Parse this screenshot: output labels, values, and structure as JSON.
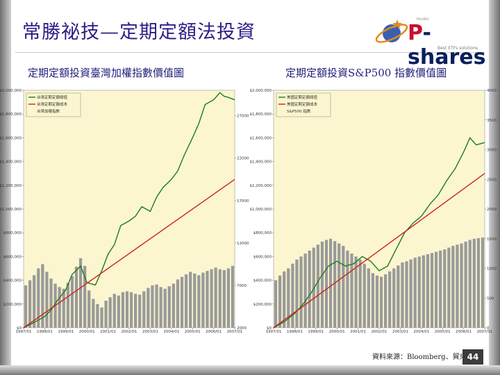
{
  "page": {
    "title": "常勝祕技—定期定額法投資",
    "source": "資料來源：Bloomberg、貿來投信",
    "page_number": "44",
    "logo": {
      "brand_prefix": "P",
      "brand_suffix": "-shares",
      "tagline": "Best ETFs solutions",
      "small": "POLARIS"
    }
  },
  "colors": {
    "cumulative": "#1f7a1f",
    "invested": "#cc2222",
    "index_bars": "#9a9a9a",
    "plot_bg": "#fbf6cf",
    "title": "#2b1d86"
  },
  "chart_data": [
    {
      "type": "line",
      "subtitle": "定期定額投資臺灣加權指數價值圖",
      "x_tick_labels": [
        "1997/01",
        "1998/01",
        "1999/01",
        "2000/01",
        "2001/01",
        "2002/01",
        "2003/01",
        "2004/01",
        "2005/01",
        "2006/01",
        "2007/01"
      ],
      "y_left_ticks": [
        0,
        200000,
        400000,
        600000,
        800000,
        1000000,
        1200000,
        1400000,
        1600000,
        1800000,
        2000000
      ],
      "y_left_tick_labels": [
        "$0",
        "$200,000",
        "$400,000",
        "$600,000",
        "$800,000",
        "$1,000,000",
        "$1,200,000",
        "$1,400,000",
        "$1,600,000",
        "$1,800,000",
        "$2,000,000"
      ],
      "y_right_ticks": [
        2000,
        7000,
        12000,
        17000,
        22000,
        27000
      ],
      "y_right_tick_labels": [
        "2000",
        "7000",
        "12000",
        "17000",
        "22000",
        "27000"
      ],
      "ylim_left": [
        0,
        2000000
      ],
      "ylim_right": [
        2000,
        30000
      ],
      "legend": [
        "台灣定期定額總值",
        "台灣定期定額成本",
        "台灣加權指數"
      ],
      "series": [
        {
          "name": "台灣定期定額總值",
          "axis": "left",
          "style": "line",
          "x": [
            0,
            0.05,
            0.1,
            0.13,
            0.16,
            0.2,
            0.23,
            0.27,
            0.3,
            0.34,
            0.37,
            0.4,
            0.43,
            0.46,
            0.5,
            0.53,
            0.56,
            0.6,
            0.63,
            0.66,
            0.7,
            0.73,
            0.76,
            0.8,
            0.83,
            0.86,
            0.9,
            0.93,
            0.95,
            0.97,
            1.0
          ],
          "y": [
            0,
            45000,
            95000,
            150000,
            230000,
            320000,
            450000,
            520000,
            380000,
            360000,
            480000,
            620000,
            700000,
            860000,
            900000,
            940000,
            1020000,
            980000,
            1100000,
            1180000,
            1250000,
            1320000,
            1450000,
            1600000,
            1720000,
            1880000,
            1920000,
            1980000,
            1950000,
            1940000,
            1920000
          ]
        },
        {
          "name": "台灣定期定額成本",
          "axis": "left",
          "style": "line",
          "x": [
            0,
            1.0
          ],
          "y": [
            0,
            1250000
          ]
        },
        {
          "name": "台灣加權指數",
          "axis": "right",
          "style": "bars",
          "values": [
            7000,
            7600,
            8200,
            9000,
            9500,
            8600,
            7800,
            7200,
            6800,
            6600,
            7300,
            8100,
            9200,
            10200,
            9300,
            6400,
            5400,
            4800,
            4400,
            5200,
            5600,
            6000,
            5800,
            6200,
            6300,
            6200,
            6000,
            5900,
            6300,
            6700,
            7000,
            7100,
            6800,
            6600,
            6900,
            7200,
            7700,
            8000,
            8300,
            8600,
            8400,
            8200,
            8500,
            8700,
            8900,
            9100,
            8900,
            8800,
            9000,
            9300
          ]
        }
      ]
    },
    {
      "type": "line",
      "subtitle": "定期定額投資S&P500 指數價值圖",
      "x_tick_labels": [
        "1997/01",
        "1998/01",
        "1999/01",
        "2000/01",
        "2001/01",
        "2002/01",
        "2003/01",
        "2004/01",
        "2005/01",
        "2006/01",
        "2007/01"
      ],
      "y_left_ticks": [
        0,
        200000,
        400000,
        600000,
        800000,
        1000000,
        1200000,
        1400000,
        1600000,
        1800000,
        2000000
      ],
      "y_left_tick_labels": [
        "$0",
        "$200,000",
        "$400,000",
        "$600,000",
        "$800,000",
        "$1,000,000",
        "$1,200,000",
        "$1,400,000",
        "$1,600,000",
        "$1,800,000",
        "$2,000,000"
      ],
      "y_right_ticks": [
        0,
        500,
        1000,
        1500,
        2000,
        2500,
        3000,
        3500,
        4000
      ],
      "y_right_tick_labels": [
        "0",
        "500",
        "1000",
        "1500",
        "2000",
        "2500",
        "3000",
        "3500",
        "4000"
      ],
      "ylim_left": [
        0,
        2000000
      ],
      "ylim_right": [
        0,
        4000
      ],
      "legend": [
        "美國定期定額總值",
        "美國定期定額成本",
        "S&P500 指數"
      ],
      "series": [
        {
          "name": "美國定期定額總值",
          "axis": "left",
          "style": "line",
          "x": [
            0,
            0.05,
            0.1,
            0.14,
            0.18,
            0.22,
            0.26,
            0.3,
            0.34,
            0.38,
            0.42,
            0.46,
            0.5,
            0.54,
            0.58,
            0.62,
            0.66,
            0.7,
            0.74,
            0.78,
            0.82,
            0.86,
            0.9,
            0.93,
            0.96,
            1.0
          ],
          "y": [
            0,
            50000,
            120000,
            200000,
            300000,
            420000,
            520000,
            560000,
            520000,
            540000,
            600000,
            560000,
            480000,
            520000,
            660000,
            800000,
            880000,
            940000,
            1040000,
            1120000,
            1240000,
            1340000,
            1480000,
            1600000,
            1540000,
            1560000
          ]
        },
        {
          "name": "美國定期定額成本",
          "axis": "left",
          "style": "line",
          "x": [
            0,
            1.0
          ],
          "y": [
            0,
            1300000
          ]
        },
        {
          "name": "S&P500 指數",
          "axis": "right",
          "style": "bars",
          "values": [
            800,
            880,
            950,
            1000,
            1080,
            1150,
            1200,
            1250,
            1300,
            1350,
            1400,
            1450,
            1480,
            1500,
            1460,
            1420,
            1380,
            1300,
            1250,
            1200,
            1150,
            1080,
            1000,
            920,
            880,
            860,
            900,
            950,
            1000,
            1050,
            1100,
            1120,
            1150,
            1180,
            1200,
            1220,
            1240,
            1260,
            1280,
            1300,
            1320,
            1350,
            1380,
            1400,
            1420,
            1450,
            1480,
            1500,
            1510,
            1520
          ]
        }
      ]
    }
  ]
}
